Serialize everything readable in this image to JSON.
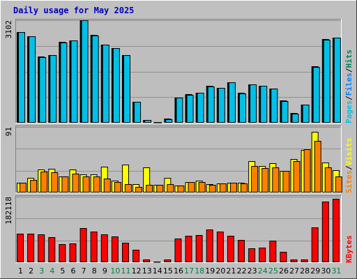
{
  "title": "Daily usage for May 2025",
  "colors": {
    "background": "#c0c0c0",
    "plot": "#bebebe",
    "title": "#0000c0",
    "pages": "#00c0e8",
    "files": "#0080ff",
    "hits": "#00805c",
    "visits": "#ffff00",
    "sites": "#ff8000",
    "kbytes": "#ff0000",
    "weekend_day": "#008040",
    "weekday": "#000000"
  },
  "chart_data": [
    {
      "type": "bar",
      "name": "hits-files-pages",
      "legend": [
        {
          "label": "Pages",
          "color": "#00c0e8"
        },
        {
          "label": "Files",
          "color": "#0080ff"
        },
        {
          "label": "Hits",
          "color": "#00805c"
        }
      ],
      "separators": [
        "/",
        "/"
      ],
      "ymax_label": "3102",
      "ylim": [
        0,
        3102
      ],
      "x": [
        1,
        2,
        3,
        4,
        5,
        6,
        7,
        8,
        9,
        10,
        11,
        12,
        13,
        14,
        15,
        16,
        17,
        18,
        19,
        20,
        21,
        22,
        23,
        24,
        25,
        26,
        27,
        28,
        29,
        30,
        31
      ],
      "series": [
        {
          "name": "Hits",
          "values": [
            2740,
            2620,
            2000,
            2040,
            2440,
            2500,
            3102,
            2650,
            2370,
            2260,
            2050,
            640,
            90,
            30,
            120,
            770,
            860,
            910,
            1110,
            1060,
            1230,
            900,
            1170,
            1120,
            1030,
            670,
            290,
            550,
            1700,
            2530,
            2580
          ]
        },
        {
          "name": "Files",
          "values": [
            2740,
            2620,
            1990,
            2040,
            2430,
            2480,
            3102,
            2640,
            2360,
            2250,
            2040,
            630,
            90,
            30,
            110,
            760,
            850,
            900,
            1100,
            1050,
            1220,
            890,
            1160,
            1110,
            1030,
            660,
            280,
            540,
            1690,
            2520,
            2570
          ]
        },
        {
          "name": "Pages",
          "values": [
            2740,
            2620,
            1990,
            2040,
            2430,
            2480,
            3102,
            2640,
            2360,
            2250,
            2040,
            630,
            90,
            30,
            110,
            760,
            850,
            900,
            1100,
            1050,
            1220,
            890,
            1160,
            1110,
            1030,
            660,
            280,
            540,
            1690,
            2520,
            2570
          ]
        }
      ]
    },
    {
      "type": "bar",
      "name": "visits-sites",
      "legend": [
        {
          "label": "Sites",
          "color": "#ff8000"
        },
        {
          "label": "Visits",
          "color": "#ffff00"
        }
      ],
      "separators": [
        "/"
      ],
      "ymax_label": "91",
      "ylim": [
        0,
        91
      ],
      "x": [
        1,
        2,
        3,
        4,
        5,
        6,
        7,
        8,
        9,
        10,
        11,
        12,
        13,
        14,
        15,
        16,
        17,
        18,
        19,
        20,
        21,
        22,
        23,
        24,
        25,
        26,
        27,
        28,
        29,
        30,
        31
      ],
      "series": [
        {
          "name": "Visits",
          "values": [
            14,
            20,
            32,
            33,
            22,
            32,
            25,
            25,
            36,
            16,
            39,
            12,
            35,
            11,
            20,
            10,
            15,
            16,
            12,
            13,
            14,
            14,
            44,
            37,
            41,
            30,
            46,
            59,
            84,
            42,
            31
          ]
        },
        {
          "name": "Sites",
          "values": [
            14,
            17,
            29,
            28,
            22,
            26,
            22,
            22,
            19,
            15,
            12,
            8,
            11,
            11,
            12,
            10,
            15,
            15,
            11,
            13,
            14,
            13,
            37,
            34,
            35,
            30,
            44,
            60,
            72,
            35,
            22
          ]
        }
      ]
    },
    {
      "type": "bar",
      "name": "kbytes",
      "legend": [
        {
          "label": "KBytes",
          "color": "#ff0000"
        }
      ],
      "separators": [],
      "ymax_label": "182118",
      "ylim": [
        0,
        182118
      ],
      "x": [
        1,
        2,
        3,
        4,
        5,
        6,
        7,
        8,
        9,
        10,
        11,
        12,
        13,
        14,
        15,
        16,
        17,
        18,
        19,
        20,
        21,
        22,
        23,
        24,
        25,
        26,
        27,
        28,
        29,
        30,
        31
      ],
      "series": [
        {
          "name": "KBytes",
          "values": [
            80000,
            80000,
            78000,
            70000,
            50000,
            52000,
            94000,
            86000,
            78000,
            72000,
            55000,
            35000,
            8000,
            2000,
            8000,
            65000,
            73000,
            76000,
            92000,
            86000,
            74000,
            62000,
            38000,
            40000,
            60000,
            30000,
            8000,
            8000,
            96000,
            169000,
            177000
          ]
        }
      ]
    }
  ],
  "weekend_days": [
    3,
    4,
    10,
    11,
    17,
    18,
    24,
    25,
    31
  ]
}
